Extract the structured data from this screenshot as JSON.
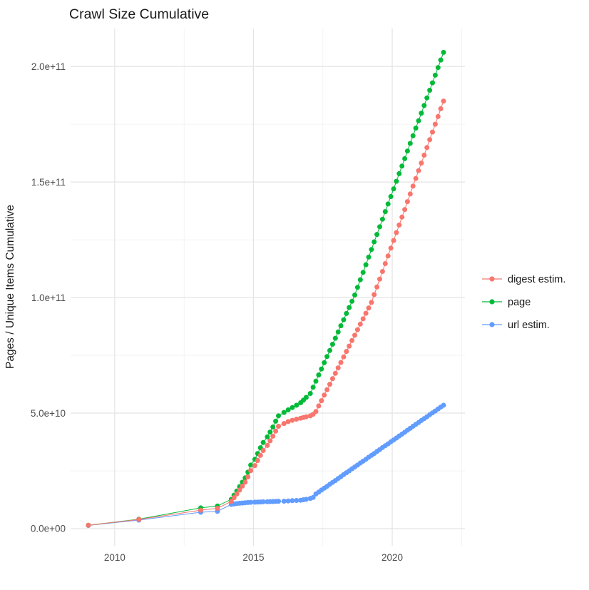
{
  "title": "Crawl Size Cumulative",
  "y_axis": {
    "label": "Pages / Unique Items Cumulative",
    "tick_labels": [
      "0.0e+00",
      "5.0e+10",
      "1.0e+11",
      "1.5e+11",
      "2.0e+11"
    ],
    "tick_values_e9": [
      0,
      50,
      100,
      150,
      200
    ],
    "minor_gridlines_e9": [
      25,
      75,
      125,
      175
    ]
  },
  "x_axis": {
    "tick_labels": [
      "2010",
      "2015",
      "2020"
    ],
    "tick_values": [
      2010,
      2015,
      2020
    ],
    "minor_gridlines": [
      2012.5,
      2017.5,
      2022.5
    ]
  },
  "legend": {
    "items": [
      {
        "label": "digest estim.",
        "color": "#F8766D"
      },
      {
        "label": "page",
        "color": "#00BA38"
      },
      {
        "label": "url estim.",
        "color": "#619CFF"
      }
    ]
  },
  "colors": {
    "digest": "#F8766D",
    "page": "#00BA38",
    "url": "#619CFF",
    "grid_major": "#E4E4E4",
    "grid_minor": "#F0F0F0",
    "axis_text": "#4d4d4d",
    "title_text": "#1a1a1a"
  },
  "chart_data": {
    "type": "scatter",
    "title": "Crawl Size Cumulative",
    "xlabel": "",
    "ylabel": "Pages / Unique Items Cumulative",
    "value_scale": 1000000000,
    "xlim": [
      2008.41,
      2022.62
    ],
    "ylim_e9": [
      -7.4,
      216.4
    ],
    "grid": "on",
    "legend_position": "right",
    "marker_radius_px": 3.5,
    "draw_order": [
      "url estim.",
      "page",
      "digest estim."
    ],
    "x": [
      2009.05,
      2010.87,
      2013.1,
      2013.7,
      2014.2,
      2014.3,
      2014.4,
      2014.5,
      2014.6,
      2014.7,
      2014.8,
      2014.9,
      2015.05,
      2015.15,
      2015.25,
      2015.35,
      2015.5,
      2015.6,
      2015.7,
      2015.8,
      2015.9,
      2016.1,
      2016.25,
      2016.4,
      2016.55,
      2016.7,
      2016.8,
      2016.9,
      2017.05,
      2017.15,
      2017.25,
      2017.35,
      2017.45,
      2017.55,
      2017.65,
      2017.75,
      2017.85,
      2017.95,
      2018.05,
      2018.15,
      2018.25,
      2018.35,
      2018.45,
      2018.55,
      2018.65,
      2018.75,
      2018.85,
      2018.95,
      2019.05,
      2019.15,
      2019.25,
      2019.35,
      2019.45,
      2019.55,
      2019.65,
      2019.75,
      2019.85,
      2019.95,
      2020.05,
      2020.15,
      2020.25,
      2020.35,
      2020.45,
      2020.55,
      2020.65,
      2020.75,
      2020.85,
      2020.95,
      2021.05,
      2021.15,
      2021.25,
      2021.35,
      2021.45,
      2021.55,
      2021.65,
      2021.75,
      2021.85
    ],
    "series": [
      {
        "name": "digest estim.",
        "color": "#F8766D",
        "values_e9": [
          1.5,
          4.0,
          8.0,
          8.8,
          11.8,
          13.4,
          15.0,
          16.7,
          18.4,
          20.1,
          22.4,
          25.1,
          27.3,
          29.5,
          31.7,
          33.8,
          36.0,
          38.0,
          40.0,
          42.2,
          44.3,
          45.5,
          46.3,
          46.9,
          47.4,
          47.8,
          48.1,
          48.4,
          48.8,
          49.5,
          50.7,
          53.1,
          55.4,
          57.8,
          60.1,
          62.5,
          64.9,
          67.2,
          69.6,
          71.9,
          74.3,
          76.7,
          79.0,
          81.4,
          83.7,
          86.1,
          88.5,
          90.8,
          93.2,
          95.5,
          97.9,
          101.3,
          104.6,
          108.0,
          111.3,
          114.7,
          118.0,
          121.4,
          124.7,
          128.1,
          131.4,
          134.8,
          138.1,
          141.5,
          144.8,
          148.2,
          151.5,
          154.9,
          158.2,
          161.6,
          164.9,
          168.3,
          171.6,
          175.0,
          178.3,
          181.7,
          185.0
        ]
      },
      {
        "name": "page",
        "color": "#00BA38",
        "values_e9": [
          1.5,
          4.1,
          9.0,
          9.8,
          12.7,
          14.5,
          16.3,
          18.2,
          20.1,
          22.0,
          24.5,
          27.5,
          30.0,
          32.5,
          35.0,
          37.3,
          39.7,
          41.8,
          44.0,
          46.5,
          48.8,
          50.3,
          51.4,
          52.4,
          53.4,
          54.5,
          55.6,
          56.8,
          58.5,
          61.2,
          63.8,
          66.5,
          69.1,
          71.8,
          74.5,
          77.1,
          79.8,
          82.4,
          85.1,
          87.8,
          90.4,
          93.1,
          95.7,
          98.4,
          101.1,
          104.4,
          107.7,
          110.9,
          114.2,
          117.5,
          120.8,
          124.1,
          127.3,
          130.6,
          133.9,
          137.2,
          140.5,
          143.7,
          147.0,
          150.3,
          153.6,
          156.9,
          160.1,
          163.4,
          166.7,
          170.0,
          173.3,
          176.5,
          179.8,
          183.1,
          186.4,
          189.7,
          192.9,
          196.2,
          199.5,
          202.8,
          206.1
        ]
      },
      {
        "name": "url estim.",
        "color": "#619CFF",
        "values_e9": [
          1.4,
          3.7,
          7.1,
          7.5,
          10.5,
          10.7,
          10.85,
          11.0,
          11.1,
          11.2,
          11.3,
          11.4,
          11.45,
          11.5,
          11.55,
          11.6,
          11.65,
          11.7,
          11.75,
          11.8,
          11.85,
          11.9,
          12.0,
          12.1,
          12.2,
          12.3,
          12.5,
          12.7,
          13.1,
          13.5,
          15.0,
          15.8,
          16.7,
          17.5,
          18.3,
          19.2,
          20.0,
          20.8,
          21.7,
          22.5,
          23.4,
          24.2,
          25.0,
          25.9,
          26.7,
          27.5,
          28.4,
          29.2,
          30.0,
          30.9,
          31.7,
          32.5,
          33.4,
          34.2,
          35.1,
          35.9,
          36.7,
          37.6,
          38.4,
          39.2,
          40.1,
          40.9,
          41.7,
          42.6,
          43.4,
          44.3,
          45.1,
          45.9,
          46.8,
          47.6,
          48.4,
          49.3,
          50.1,
          50.9,
          51.8,
          52.6,
          53.4
        ]
      }
    ]
  }
}
